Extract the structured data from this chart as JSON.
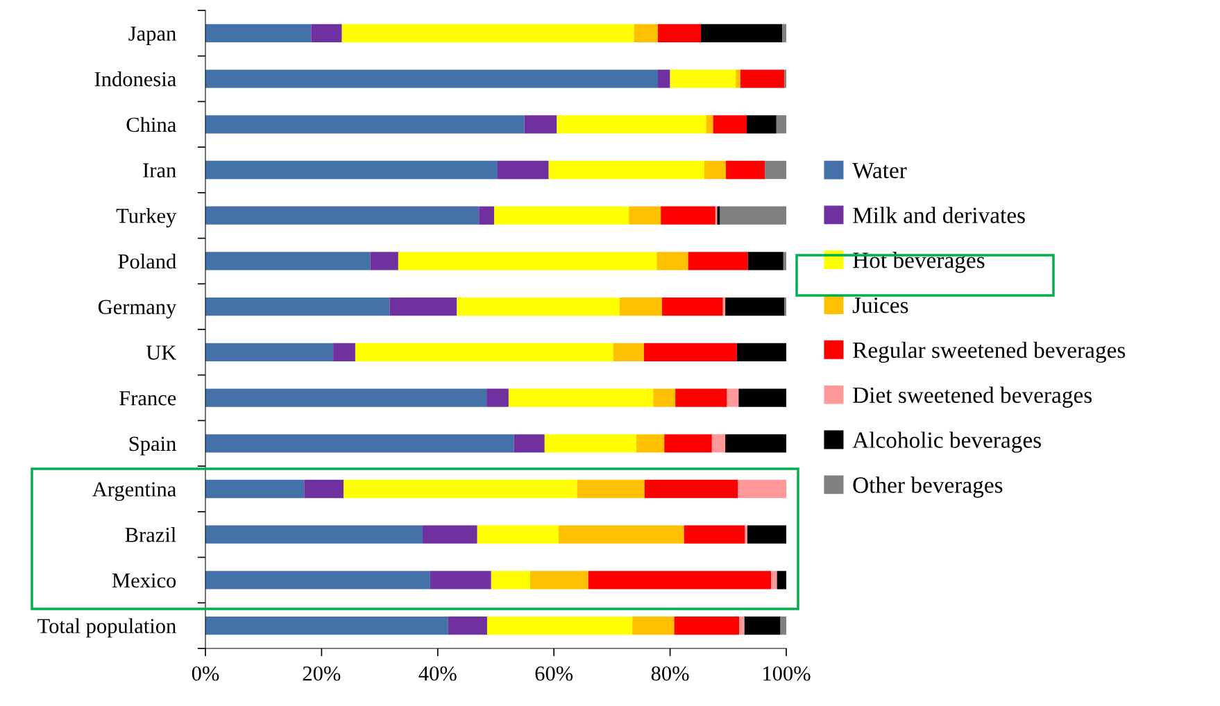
{
  "chart_data": {
    "type": "bar",
    "orientation": "horizontal",
    "stacked": true,
    "categories": [
      "Japan",
      "Indonesia",
      "China",
      "Iran",
      "Turkey",
      "Poland",
      "Germany",
      "UK",
      "France",
      "Spain",
      "Argentina",
      "Brazil",
      "Mexico",
      "Total population"
    ],
    "series": [
      {
        "name": "Water",
        "color": "#4472a8",
        "values": [
          18.2,
          77.9,
          54.9,
          50.3,
          47.1,
          28.4,
          31.7,
          22.0,
          48.4,
          53.1,
          17.0,
          37.4,
          38.7,
          41.8
        ]
      },
      {
        "name": "Milk and derivates",
        "color": "#7030a0",
        "values": [
          5.3,
          2.1,
          5.6,
          8.8,
          2.6,
          4.8,
          11.6,
          3.8,
          3.8,
          5.3,
          6.8,
          9.4,
          10.5,
          6.7
        ]
      },
      {
        "name": "Hot beverages",
        "color": "#ffff00",
        "values": [
          50.3,
          11.3,
          25.7,
          26.8,
          23.2,
          44.5,
          28.0,
          44.4,
          24.9,
          15.8,
          40.2,
          14.0,
          6.7,
          25.0
        ]
      },
      {
        "name": "Juices",
        "color": "#ffc000",
        "values": [
          4.1,
          0.8,
          1.2,
          3.7,
          5.5,
          5.4,
          7.3,
          5.3,
          3.8,
          4.8,
          11.6,
          21.6,
          10.0,
          7.2
        ]
      },
      {
        "name": "Regular sweetened beverages",
        "color": "#ff0000",
        "values": [
          7.4,
          7.6,
          5.8,
          6.7,
          9.4,
          10.3,
          10.5,
          16.0,
          8.9,
          8.2,
          16.1,
          10.5,
          31.5,
          11.2
        ]
      },
      {
        "name": "Diet sweetened beverages",
        "color": "#ff9999",
        "values": [
          0,
          0,
          0,
          0,
          0.3,
          0,
          0.4,
          0,
          2.0,
          2.3,
          8.3,
          0.4,
          1.0,
          0.9
        ]
      },
      {
        "name": "Alcoholic beverages",
        "color": "#000000",
        "values": [
          14.0,
          0,
          5.1,
          0,
          0.5,
          6.1,
          10.2,
          8.5,
          8.2,
          10.5,
          0,
          6.7,
          1.6,
          6.2
        ]
      },
      {
        "name": "Other beverages",
        "color": "#808080",
        "values": [
          0.7,
          0.3,
          1.7,
          3.7,
          11.4,
          0.5,
          0.3,
          0,
          0,
          0,
          0,
          0,
          0,
          1.0
        ]
      }
    ],
    "xlim": [
      0,
      100
    ],
    "xticks": [
      {
        "value": 0,
        "label": "0%"
      },
      {
        "value": 20,
        "label": "20%"
      },
      {
        "value": 40,
        "label": "40%"
      },
      {
        "value": 60,
        "label": "60%"
      },
      {
        "value": 80,
        "label": "80%"
      },
      {
        "value": 100,
        "label": "100%"
      }
    ],
    "legend": "right",
    "grid": false
  }
}
